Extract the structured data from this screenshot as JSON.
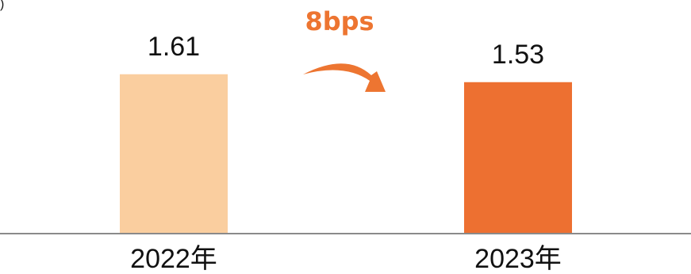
{
  "chart_data": {
    "type": "bar",
    "categories": [
      "2022年",
      "2023年"
    ],
    "values": [
      1.61,
      1.53
    ],
    "value_labels": [
      "1.61",
      "1.53"
    ],
    "colors": [
      "#FACE9F",
      "#ED7031"
    ],
    "annotation": "8bps",
    "annotation_color": "#ED7531",
    "corner_mark": ")",
    "grid": false
  }
}
